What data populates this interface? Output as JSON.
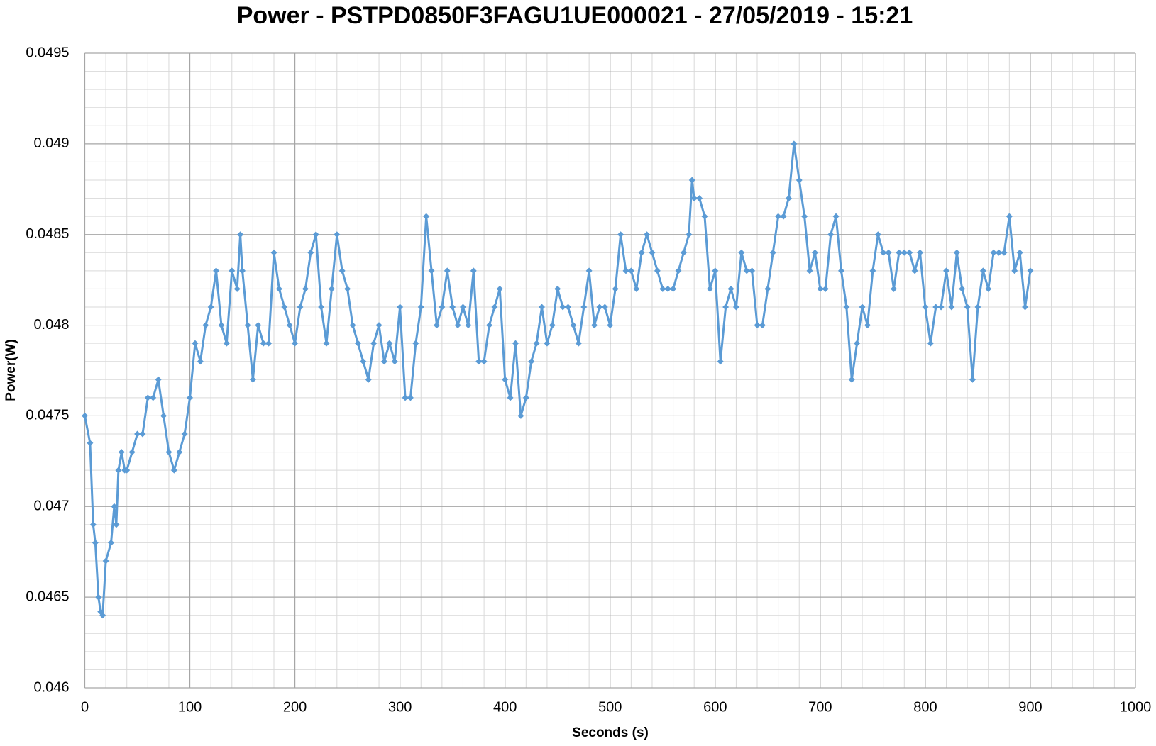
{
  "chart_data": {
    "type": "line",
    "title": "Power - PSTPD0850F3FAGU1UE000021 - 27/05/2019 - 15:21",
    "x_label": "Seconds (s)",
    "y_label": "Power(W)",
    "xlim": [
      0,
      1000
    ],
    "xticks": [
      0,
      100,
      200,
      300,
      400,
      500,
      600,
      700,
      800,
      900,
      1000
    ],
    "ylim": [
      0.046,
      0.0495
    ],
    "yticks": [
      0.046,
      0.0465,
      0.047,
      0.0475,
      0.048,
      0.0485,
      0.049,
      0.0495
    ],
    "grid": true,
    "x": [
      0,
      5,
      8,
      10,
      13,
      15,
      17,
      20,
      25,
      28,
      30,
      32,
      35,
      38,
      40,
      45,
      50,
      55,
      60,
      65,
      70,
      75,
      80,
      85,
      90,
      95,
      100,
      105,
      110,
      115,
      120,
      125,
      130,
      135,
      140,
      145,
      148,
      150,
      155,
      160,
      165,
      170,
      175,
      180,
      185,
      190,
      195,
      200,
      205,
      210,
      215,
      220,
      225,
      230,
      235,
      240,
      245,
      250,
      255,
      260,
      265,
      270,
      275,
      280,
      285,
      290,
      295,
      300,
      305,
      310,
      315,
      320,
      325,
      330,
      335,
      340,
      345,
      350,
      355,
      360,
      365,
      370,
      375,
      380,
      385,
      390,
      395,
      400,
      405,
      410,
      415,
      420,
      425,
      430,
      435,
      440,
      445,
      450,
      455,
      460,
      465,
      470,
      475,
      480,
      485,
      490,
      495,
      500,
      505,
      510,
      515,
      520,
      525,
      530,
      535,
      540,
      545,
      550,
      555,
      560,
      565,
      570,
      575,
      578,
      580,
      585,
      590,
      595,
      600,
      605,
      610,
      615,
      620,
      625,
      630,
      635,
      640,
      645,
      650,
      655,
      660,
      665,
      670,
      675,
      680,
      685,
      690,
      695,
      700,
      705,
      710,
      715,
      720,
      725,
      730,
      735,
      740,
      745,
      750,
      755,
      760,
      765,
      770,
      775,
      780,
      785,
      790,
      795,
      800,
      805,
      810,
      815,
      820,
      825,
      830,
      835,
      840,
      845,
      850,
      855,
      860,
      865,
      870,
      875,
      880,
      885,
      890,
      895,
      900
    ],
    "series": [
      {
        "name": "Power",
        "color": "#5b9bd5",
        "values": [
          0.0475,
          0.04735,
          0.0469,
          0.0468,
          0.0465,
          0.04642,
          0.0464,
          0.0467,
          0.0468,
          0.047,
          0.0469,
          0.0472,
          0.0473,
          0.0472,
          0.0472,
          0.0473,
          0.0474,
          0.0474,
          0.0476,
          0.0476,
          0.0477,
          0.0475,
          0.0473,
          0.0472,
          0.0473,
          0.0474,
          0.0476,
          0.0479,
          0.0478,
          0.048,
          0.0481,
          0.0483,
          0.048,
          0.0479,
          0.0483,
          0.0482,
          0.0485,
          0.0483,
          0.048,
          0.0477,
          0.048,
          0.0479,
          0.0479,
          0.0484,
          0.0482,
          0.0481,
          0.048,
          0.0479,
          0.0481,
          0.0482,
          0.0484,
          0.0485,
          0.0481,
          0.0479,
          0.0482,
          0.0485,
          0.0483,
          0.0482,
          0.048,
          0.0479,
          0.0478,
          0.0477,
          0.0479,
          0.048,
          0.0478,
          0.0479,
          0.0478,
          0.0481,
          0.0476,
          0.0476,
          0.0479,
          0.0481,
          0.0486,
          0.0483,
          0.048,
          0.0481,
          0.0483,
          0.0481,
          0.048,
          0.0481,
          0.048,
          0.0483,
          0.0478,
          0.0478,
          0.048,
          0.0481,
          0.0482,
          0.0477,
          0.0476,
          0.0479,
          0.0475,
          0.0476,
          0.0478,
          0.0479,
          0.0481,
          0.0479,
          0.048,
          0.0482,
          0.0481,
          0.0481,
          0.048,
          0.0479,
          0.0481,
          0.0483,
          0.048,
          0.0481,
          0.0481,
          0.048,
          0.0482,
          0.0485,
          0.0483,
          0.0483,
          0.0482,
          0.0484,
          0.0485,
          0.0484,
          0.0483,
          0.0482,
          0.0482,
          0.0482,
          0.0483,
          0.0484,
          0.0485,
          0.0488,
          0.0487,
          0.0487,
          0.0486,
          0.0482,
          0.0483,
          0.0478,
          0.0481,
          0.0482,
          0.0481,
          0.0484,
          0.0483,
          0.0483,
          0.048,
          0.048,
          0.0482,
          0.0484,
          0.0486,
          0.0486,
          0.0487,
          0.049,
          0.0488,
          0.0486,
          0.0483,
          0.0484,
          0.0482,
          0.0482,
          0.0485,
          0.0486,
          0.0483,
          0.0481,
          0.0477,
          0.0479,
          0.0481,
          0.048,
          0.0483,
          0.0485,
          0.0484,
          0.0484,
          0.0482,
          0.0484,
          0.0484,
          0.0484,
          0.0483,
          0.0484,
          0.0481,
          0.0479,
          0.0481,
          0.0481,
          0.0483,
          0.0481,
          0.0484,
          0.0482,
          0.0481,
          0.0477,
          0.0481,
          0.0483,
          0.0482,
          0.0484,
          0.0484,
          0.0484,
          0.0486,
          0.0483,
          0.0484,
          0.0481,
          0.0483
        ]
      }
    ]
  }
}
